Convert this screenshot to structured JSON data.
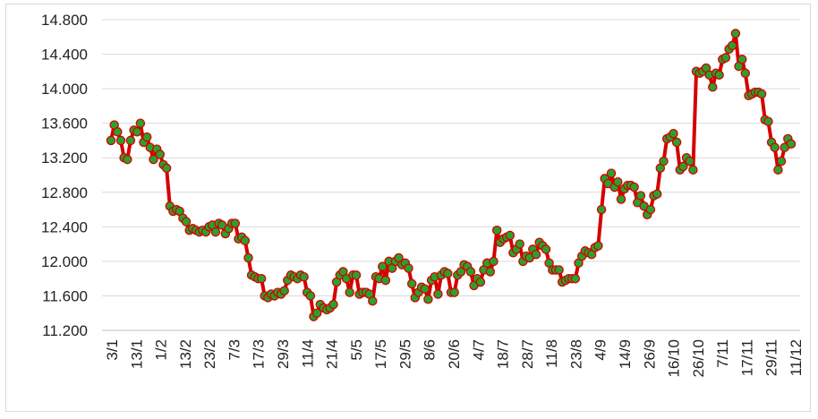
{
  "chart_data": {
    "type": "line",
    "title": "",
    "xlabel": "",
    "ylabel": "",
    "ylim": [
      11200,
      14800
    ],
    "y_ticks": [
      "11.200",
      "11.600",
      "12.000",
      "12.400",
      "12.800",
      "13.200",
      "13.600",
      "14.000",
      "14.400",
      "14.800"
    ],
    "grid": true,
    "line_color": "#d40000",
    "marker_fill": "#2ca02c",
    "marker_edge": "#d40000",
    "x_tick_labels": [
      "3/1",
      "13/1",
      "1/2",
      "13/2",
      "23/2",
      "7/3",
      "17/3",
      "29/3",
      "11/4",
      "21/4",
      "5/5",
      "17/5",
      "29/5",
      "8/6",
      "20/6",
      "4/7",
      "18/7",
      "28/7",
      "11/8",
      "23/8",
      "4/9",
      "14/9",
      "26/9",
      "16/10",
      "26/10",
      "7/11",
      "17/11",
      "29/11",
      "11/12"
    ],
    "series": [
      {
        "values": [
          13400,
          13580,
          13500,
          13400,
          13200,
          13180,
          13400,
          13520,
          13500,
          13600,
          13380,
          13440,
          13320,
          13180,
          13300,
          13240,
          13120,
          13080,
          12640,
          12580,
          12600,
          12580,
          12500,
          12460,
          12360,
          12380,
          12360,
          12340,
          12360,
          12340,
          12400,
          12420,
          12340,
          12440,
          12420,
          12320,
          12380,
          12440,
          12440,
          12260,
          12280,
          12240,
          12040,
          11840,
          11820,
          11800,
          11800,
          11600,
          11580,
          11620,
          11600,
          11640,
          11620,
          11660,
          11780,
          11840,
          11820,
          11800,
          11840,
          11820,
          11640,
          11600,
          11360,
          11400,
          11500,
          11460,
          11440,
          11460,
          11500,
          11760,
          11840,
          11880,
          11800,
          11640,
          11840,
          11840,
          11620,
          11640,
          11640,
          11620,
          11540,
          11820,
          11800,
          11940,
          11780,
          12000,
          11920,
          12000,
          12040,
          11960,
          11980,
          11920,
          11740,
          11580,
          11640,
          11700,
          11680,
          11560,
          11780,
          11820,
          11620,
          11840,
          11880,
          11860,
          11640,
          11640,
          11840,
          11880,
          11960,
          11940,
          11880,
          11720,
          11800,
          11760,
          11900,
          11980,
          11880,
          12000,
          12360,
          12220,
          12260,
          12280,
          12300,
          12100,
          12140,
          12200,
          12000,
          12060,
          12040,
          12140,
          12080,
          12220,
          12180,
          12140,
          11980,
          11900,
          11900,
          11900,
          11760,
          11780,
          11800,
          11800,
          11800,
          11980,
          12060,
          12120,
          12100,
          12080,
          12160,
          12180,
          12600,
          12960,
          12900,
          13020,
          12860,
          12920,
          12720,
          12840,
          12880,
          12880,
          12860,
          12680,
          12760,
          12640,
          12540,
          12600,
          12760,
          12780,
          13080,
          13160,
          13420,
          13440,
          13480,
          13380,
          13060,
          13100,
          13200,
          13160,
          13060,
          14200,
          14180,
          14200,
          14240,
          14160,
          14020,
          14180,
          14160,
          14340,
          14360,
          14460,
          14500,
          14640,
          14260,
          14340,
          14180,
          13920,
          13940,
          13960,
          13960,
          13940,
          13640,
          13620,
          13380,
          13320,
          13060,
          13160,
          13320,
          13420,
          13360
        ]
      }
    ]
  }
}
